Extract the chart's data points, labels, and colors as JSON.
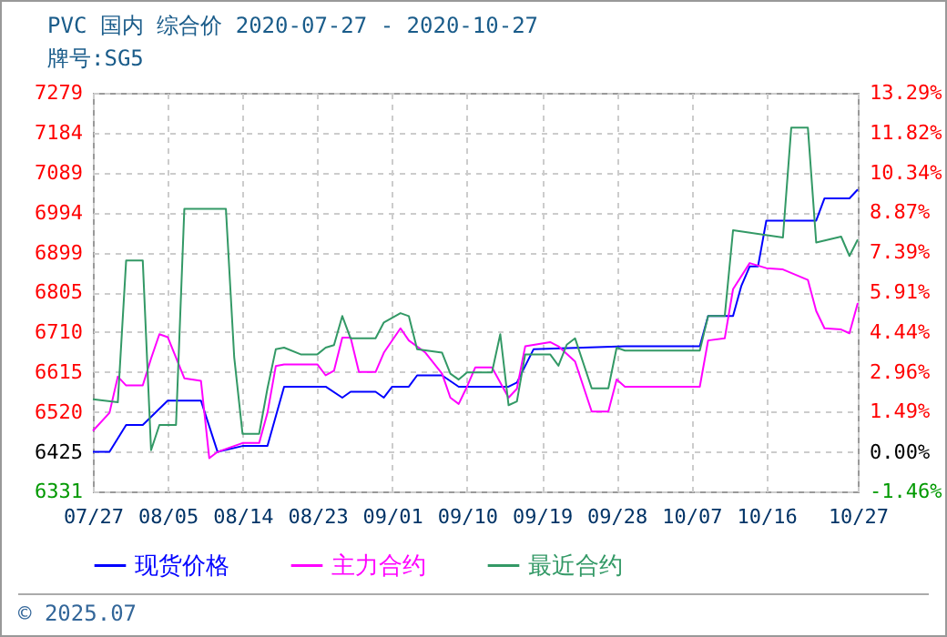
{
  "chart_data": {
    "type": "line",
    "title": "PVC 国内 综合价 2020-07-27 - 2020-10-27",
    "subtitle": "牌号:SG5",
    "xlim": [
      "--07-27",
      "--10-27"
    ],
    "xticks": [
      {
        "value": "--07-27",
        "label": "07/27"
      },
      {
        "value": "--08-05",
        "label": "08/05"
      },
      {
        "value": "--08-14",
        "label": "08/14"
      },
      {
        "value": "--08-23",
        "label": "08/23"
      },
      {
        "value": "--09-01",
        "label": "09/01"
      },
      {
        "value": "--09-10",
        "label": "09/10"
      },
      {
        "value": "--09-19",
        "label": "09/19"
      },
      {
        "value": "--09-28",
        "label": "09/28"
      },
      {
        "value": "--10-07",
        "label": "10/07"
      },
      {
        "value": "--10-16",
        "label": "10/16"
      },
      {
        "value": "--10-27",
        "label": "10/27"
      }
    ],
    "ylim": [
      6331,
      7279
    ],
    "yticks": [
      6331,
      6425,
      6520,
      6615,
      6710,
      6805,
      6899,
      6994,
      7089,
      7184,
      7279
    ],
    "y2lim": [
      -1.46,
      13.29
    ],
    "y2ticks": [
      {
        "value": -1.46,
        "label": "-1.46%"
      },
      {
        "value": 0,
        "label": "0.00%"
      },
      {
        "value": 1.49,
        "label": "1.49%"
      },
      {
        "value": 2.96,
        "label": "2.96%"
      },
      {
        "value": 4.44,
        "label": "4.44%"
      },
      {
        "value": 5.91,
        "label": "5.91%"
      },
      {
        "value": 7.39,
        "label": "7.39%"
      },
      {
        "value": 8.87,
        "label": "8.87%"
      },
      {
        "value": 10.34,
        "label": "10.34%"
      },
      {
        "value": 11.82,
        "label": "11.82%"
      },
      {
        "value": 13.29,
        "label": "13.29%"
      }
    ],
    "grid": true,
    "legend": "bottom",
    "line_style": "solid",
    "series": [
      {
        "name": "现货价格",
        "color": "#0000ff",
        "x": [
          "--07-27",
          "--07-29",
          "--07-31",
          "--08-02",
          "--08-05",
          "--08-09",
          "--08-11",
          "--08-14",
          "--08-17",
          "--08-19",
          "--08-24",
          "--08-26",
          "--08-27",
          "--08-30",
          "--08-31",
          "--09-01",
          "--09-03",
          "--09-04",
          "--09-07",
          "--09-09",
          "--09-15",
          "--09-16",
          "--09-18",
          "--09-29",
          "--10-08",
          "--10-09",
          "--10-12",
          "--10-13",
          "--10-14",
          "--10-15",
          "--10-16",
          "--10-22",
          "--10-23",
          "--10-26",
          "--10-27"
        ],
        "values": [
          6425,
          6425,
          6489,
          6489,
          6547,
          6547,
          6425,
          6439,
          6439,
          6580,
          6580,
          6554,
          6568,
          6568,
          6554,
          6580,
          6580,
          6607,
          6607,
          6580,
          6580,
          6590,
          6669,
          6676,
          6676,
          6748,
          6748,
          6820,
          6866,
          6866,
          6975,
          6975,
          7028,
          7028,
          7049
        ]
      },
      {
        "name": "主力合约",
        "color": "#ff00ff",
        "x": [
          "--07-27",
          "--07-29",
          "--07-30",
          "--07-31",
          "--08-02",
          "--08-03",
          "--08-04",
          "--08-05",
          "--08-07",
          "--08-09",
          "--08-10",
          "--08-11",
          "--08-14",
          "--08-16",
          "--08-17",
          "--08-18",
          "--08-19",
          "--08-23",
          "--08-24",
          "--08-25",
          "--08-26",
          "--08-27",
          "--08-28",
          "--08-30",
          "--08-31",
          "--09-02",
          "--09-03",
          "--09-05",
          "--09-07",
          "--09-08",
          "--09-09",
          "--09-10",
          "--09-11",
          "--09-13",
          "--09-15",
          "--09-16",
          "--09-17",
          "--09-20",
          "--09-21",
          "--09-23",
          "--09-25",
          "--09-27",
          "--09-28",
          "--09-29",
          "--10-08",
          "--10-09",
          "--10-11",
          "--10-12",
          "--10-14",
          "--10-16",
          "--10-18",
          "--10-21",
          "--10-22",
          "--10-23",
          "--10-25",
          "--10-26",
          "--10-27"
        ],
        "values": [
          6475,
          6518,
          6604,
          6583,
          6583,
          6647,
          6705,
          6698,
          6600,
          6594,
          6410,
          6425,
          6446,
          6446,
          6518,
          6629,
          6633,
          6633,
          6607,
          6618,
          6697,
          6697,
          6615,
          6615,
          6661,
          6719,
          6690,
          6661,
          6611,
          6554,
          6539,
          6580,
          6626,
          6626,
          6554,
          6575,
          6676,
          6686,
          6676,
          6640,
          6521,
          6521,
          6597,
          6580,
          6580,
          6690,
          6695,
          6812,
          6874,
          6862,
          6859,
          6834,
          6760,
          6719,
          6716,
          6707,
          6779
        ]
      },
      {
        "name": "最近合约",
        "color": "#339966",
        "x": [
          "--07-27",
          "--07-30",
          "--07-31",
          "--08-02",
          "--08-03",
          "--08-04",
          "--08-06",
          "--08-07",
          "--08-12",
          "--08-13",
          "--08-14",
          "--08-16",
          "--08-17",
          "--08-18",
          "--08-19",
          "--08-21",
          "--08-23",
          "--08-24",
          "--08-25",
          "--08-26",
          "--08-27",
          "--08-30",
          "--08-31",
          "--09-02",
          "--09-03",
          "--09-04",
          "--09-07",
          "--09-08",
          "--09-09",
          "--09-10",
          "--09-13",
          "--09-14",
          "--09-15",
          "--09-16",
          "--09-17",
          "--09-20",
          "--09-21",
          "--09-22",
          "--09-23",
          "--09-25",
          "--09-27",
          "--09-28",
          "--09-29",
          "--10-08",
          "--10-09",
          "--10-11",
          "--10-12",
          "--10-18",
          "--10-19",
          "--10-21",
          "--10-22",
          "--10-25",
          "--10-26",
          "--10-27"
        ],
        "values": [
          6550,
          6543,
          6880,
          6880,
          6429,
          6489,
          6489,
          7003,
          7003,
          6650,
          6468,
          6468,
          6576,
          6669,
          6673,
          6657,
          6657,
          6673,
          6679,
          6748,
          6695,
          6695,
          6733,
          6755,
          6748,
          6669,
          6661,
          6611,
          6597,
          6614,
          6614,
          6705,
          6536,
          6545,
          6657,
          6657,
          6630,
          6680,
          6695,
          6576,
          6576,
          6673,
          6666,
          6666,
          6748,
          6748,
          6952,
          6935,
          7196,
          7196,
          6923,
          6937,
          6891,
          6930
        ]
      }
    ],
    "annotations": [
      "© 2025.07"
    ]
  }
}
